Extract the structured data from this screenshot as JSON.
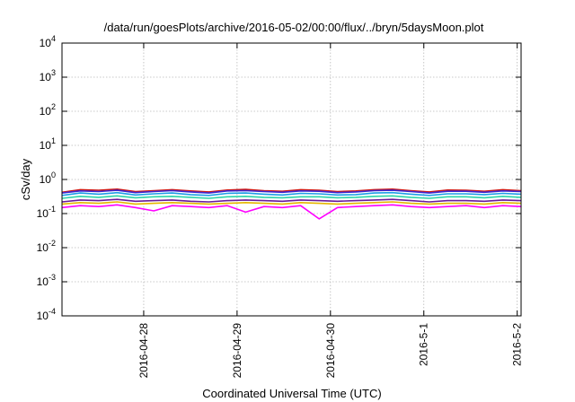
{
  "chart_data": {
    "type": "line",
    "title": "/data/run/goesPlots/archive/2016-05-02/00:00/flux/../bryn/5daysMoon.plot",
    "xlabel": "Coordinated Universal Time (UTC)",
    "ylabel": "cSv/day",
    "yscale": "log",
    "ylim": [
      0.0001,
      10000
    ],
    "xlim": [
      "2016-04-27T03:00",
      "2016-05-02T01:00"
    ],
    "x_ticks": [
      "2016-04-28",
      "2016-04-29",
      "2016-04-30",
      "2016-5-1",
      "2016-5-2"
    ],
    "y_ticks": [
      {
        "base": "10",
        "exp": "4"
      },
      {
        "base": "10",
        "exp": "3"
      },
      {
        "base": "10",
        "exp": "2"
      },
      {
        "base": "10",
        "exp": "1"
      },
      {
        "base": "10",
        "exp": "0"
      },
      {
        "base": "10",
        "exp": "-1"
      },
      {
        "base": "10",
        "exp": "-2"
      },
      {
        "base": "10",
        "exp": "-3"
      },
      {
        "base": "10",
        "exp": "-4"
      }
    ],
    "grid": true,
    "legend": "none",
    "series": [
      {
        "color": "#cc1111",
        "level": 0.45,
        "values": [
          0.42,
          0.5,
          0.48,
          0.52,
          0.44,
          0.47,
          0.5,
          0.46,
          0.43,
          0.49,
          0.51,
          0.47,
          0.45,
          0.5,
          0.48,
          0.44,
          0.46,
          0.5,
          0.52,
          0.47,
          0.43,
          0.49,
          0.48,
          0.45,
          0.5,
          0.47
        ]
      },
      {
        "color": "#3a2bd6",
        "level": 0.42,
        "values": [
          0.4,
          0.46,
          0.44,
          0.48,
          0.41,
          0.44,
          0.47,
          0.43,
          0.4,
          0.46,
          0.47,
          0.44,
          0.42,
          0.46,
          0.45,
          0.41,
          0.43,
          0.47,
          0.48,
          0.44,
          0.4,
          0.45,
          0.45,
          0.42,
          0.46,
          0.44
        ]
      },
      {
        "color": "#1fa0e6",
        "level": 0.36,
        "values": [
          0.34,
          0.4,
          0.37,
          0.41,
          0.35,
          0.38,
          0.4,
          0.36,
          0.34,
          0.39,
          0.4,
          0.37,
          0.35,
          0.39,
          0.38,
          0.35,
          0.36,
          0.4,
          0.41,
          0.37,
          0.34,
          0.38,
          0.38,
          0.36,
          0.39,
          0.37
        ]
      },
      {
        "color": "#2bd4a8",
        "level": 0.3,
        "values": [
          0.28,
          0.32,
          0.3,
          0.33,
          0.29,
          0.31,
          0.32,
          0.3,
          0.28,
          0.31,
          0.32,
          0.3,
          0.29,
          0.31,
          0.31,
          0.29,
          0.3,
          0.32,
          0.33,
          0.3,
          0.28,
          0.31,
          0.31,
          0.29,
          0.32,
          0.3
        ]
      },
      {
        "color": "#6a1b9a",
        "level": 0.24,
        "values": [
          0.22,
          0.25,
          0.24,
          0.26,
          0.23,
          0.24,
          0.25,
          0.23,
          0.22,
          0.24,
          0.25,
          0.24,
          0.23,
          0.25,
          0.24,
          0.23,
          0.24,
          0.25,
          0.26,
          0.24,
          0.22,
          0.24,
          0.24,
          0.23,
          0.25,
          0.24
        ]
      },
      {
        "color": "#e6b800",
        "level": 0.2,
        "values": [
          0.19,
          0.21,
          0.2,
          0.22,
          0.19,
          0.2,
          0.21,
          0.2,
          0.19,
          0.2,
          0.21,
          0.2,
          0.19,
          0.21,
          0.2,
          0.19,
          0.2,
          0.21,
          0.22,
          0.2,
          0.19,
          0.2,
          0.2,
          0.19,
          0.21,
          0.2
        ]
      },
      {
        "color": "#ff00ff",
        "level": 0.17,
        "values": [
          0.15,
          0.17,
          0.16,
          0.18,
          0.15,
          0.12,
          0.17,
          0.16,
          0.15,
          0.17,
          0.11,
          0.16,
          0.15,
          0.17,
          0.07,
          0.15,
          0.16,
          0.17,
          0.18,
          0.16,
          0.15,
          0.16,
          0.17,
          0.15,
          0.17,
          0.16
        ]
      }
    ]
  }
}
